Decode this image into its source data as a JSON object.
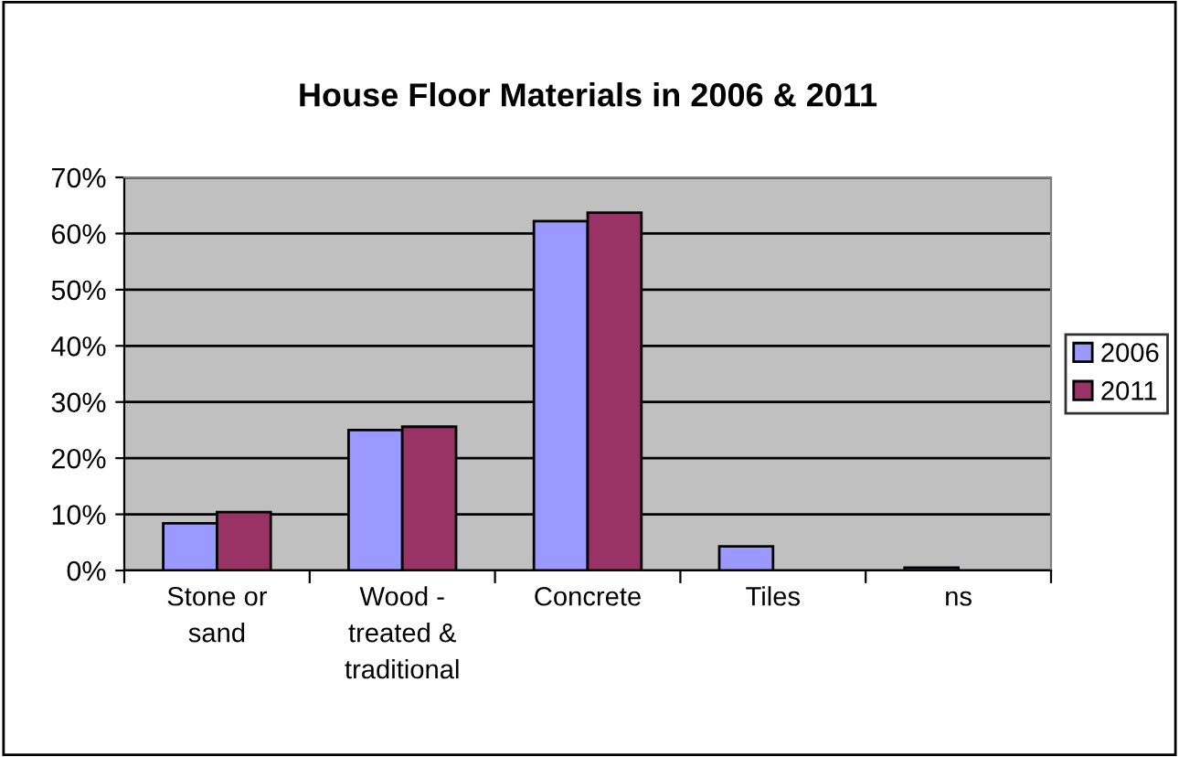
{
  "chart_data": {
    "type": "bar",
    "title": "House Floor Materials in 2006 & 2011",
    "categories": [
      "Stone or\nsand",
      "Wood -\ntreated &\ntraditional",
      "Concrete",
      "Tiles",
      "ns"
    ],
    "series": [
      {
        "name": "2006",
        "color": "#9999ff",
        "values": [
          8.4,
          25.0,
          62.2,
          4.3,
          0.5
        ]
      },
      {
        "name": "2011",
        "color": "#993366",
        "values": [
          10.4,
          25.6,
          63.7,
          null,
          null
        ]
      }
    ],
    "ylim": [
      0,
      70
    ],
    "yticks": [
      {
        "value": 0,
        "label": "0%"
      },
      {
        "value": 10,
        "label": "10%"
      },
      {
        "value": 20,
        "label": "20%"
      },
      {
        "value": 30,
        "label": "30%"
      },
      {
        "value": 40,
        "label": "40%"
      },
      {
        "value": 50,
        "label": "50%"
      },
      {
        "value": 60,
        "label": "60%"
      },
      {
        "value": 70,
        "label": "70%"
      }
    ],
    "grid": "y",
    "legend": "right"
  }
}
